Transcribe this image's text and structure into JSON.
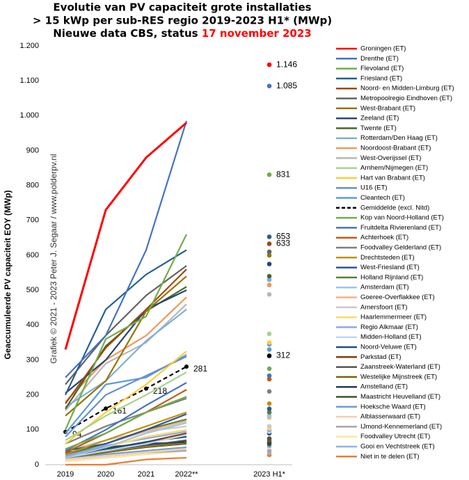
{
  "chart_data": {
    "type": "line",
    "title_lines": [
      "Evolutie van PV capaciteit grote installaties",
      "> 15 kWp per sub-RES regio 2019-2023 H1* (MWp)"
    ],
    "title_line3": "Nieuwe data CBS, status ",
    "title_highlight": "17 november 2023",
    "ylabel": "Geaccumuleerde PV capaciteit EOY (MWp)",
    "annotation": "Grafiek © 2021 - 2023 Peter J. Segaar / www.polderpv.nl",
    "categories": [
      "2019",
      "2020",
      "2021",
      "2022**",
      "2023 H1*"
    ],
    "ylim": [
      0,
      1200
    ],
    "yticks": [
      0,
      100,
      200,
      300,
      400,
      500,
      600,
      700,
      800,
      900,
      {
        "value": 1000,
        "label": "1.000"
      },
      {
        "value": 1100,
        "label": "1.100"
      },
      {
        "value": 1200,
        "label": "1.200"
      }
    ],
    "grid": false,
    "legend": "right",
    "series": [
      {
        "name": "Groningen (ET)",
        "color": "#ff0000",
        "values": [
          330,
          730,
          880,
          980,
          1146
        ],
        "value_labels": [
          null,
          null,
          null,
          null,
          "1.146"
        ]
      },
      {
        "name": "Drenthe (ET)",
        "color": "#4472c4",
        "values": [
          250,
          370,
          615,
          985,
          1085
        ],
        "value_labels": [
          null,
          null,
          null,
          null,
          "1.085"
        ]
      },
      {
        "name": "Flevoland (ET)",
        "color": "#70ad47",
        "values": [
          100,
          360,
          425,
          660,
          831
        ],
        "value_labels": [
          null,
          null,
          null,
          null,
          "831"
        ]
      },
      {
        "name": "Friesland (ET)",
        "color": "#255e91",
        "values": [
          200,
          445,
          545,
          615,
          653
        ],
        "value_labels": [
          null,
          null,
          null,
          null,
          "653"
        ]
      },
      {
        "name": "Noord- en Midden-Limburg (ET)",
        "color": "#9e480e",
        "values": [
          175,
          335,
          445,
          560,
          633
        ],
        "value_labels": [
          null,
          null,
          null,
          null,
          "633"
        ]
      },
      {
        "name": "Metropoolregio Eindhoven (ET)",
        "color": "#636363",
        "values": [
          230,
          370,
          485,
          570,
          610
        ]
      },
      {
        "name": "West-Brabant (ET)",
        "color": "#997300",
        "values": [
          140,
          240,
          440,
          540,
          600
        ]
      },
      {
        "name": "Zeeland (ET)",
        "color": "#264478",
        "values": [
          205,
          300,
          445,
          500,
          575
        ]
      },
      {
        "name": "Twente (ET)",
        "color": "#43682b",
        "values": [
          160,
          340,
          440,
          510,
          540
        ]
      },
      {
        "name": "Rotterdam/Den Haag (ET)",
        "color": "#7cafdd",
        "values": [
          165,
          240,
          355,
          445,
          530
        ]
      },
      {
        "name": "Noordoost-Brabant (ET)",
        "color": "#f1975a",
        "values": [
          180,
          300,
          370,
          480,
          515
        ]
      },
      {
        "name": "West-Overijssel (ET)",
        "color": "#b7b7b7",
        "values": [
          155,
          290,
          350,
          460,
          488
        ]
      },
      {
        "name": "Arnhem/Nijmegen (ET)",
        "color": "#a9d18e",
        "values": [
          70,
          140,
          200,
          265,
          375
        ]
      },
      {
        "name": "Hart van Brabant (ET)",
        "color": "#ffcd33",
        "values": [
          60,
          150,
          230,
          325,
          350
        ]
      },
      {
        "name": "U16 (ET)",
        "color": "#698ed0",
        "values": [
          80,
          200,
          255,
          310,
          345
        ]
      },
      {
        "name": "Cleantech (ET)",
        "color": "#5b9bd5",
        "values": [
          90,
          230,
          250,
          315,
          330
        ]
      },
      {
        "name": "Gemiddelde (excl. Nitd)",
        "color": "#000000",
        "style": "dashed",
        "values": [
          94,
          161,
          218,
          281,
          312
        ],
        "value_labels": [
          "94",
          "161",
          "218",
          "281",
          "312"
        ]
      },
      {
        "name": "Kop van Noord-Holland (ET)",
        "color": "#70ad47",
        "values": [
          45,
          90,
          150,
          195,
          275
        ]
      },
      {
        "name": "Fruitdelta Rivierenland (ET)",
        "color": "#4472c4",
        "values": [
          40,
          100,
          170,
          235,
          255
        ]
      },
      {
        "name": "Achterhoek (ET)",
        "color": "#c55a11",
        "values": [
          35,
          90,
          150,
          215,
          245
        ]
      },
      {
        "name": "Foodvalley Gelderland (ET)",
        "color": "#7f7f7f",
        "values": [
          60,
          110,
          150,
          190,
          210
        ]
      },
      {
        "name": "Drechtsteden (ET)",
        "color": "#bf9000",
        "values": [
          30,
          70,
          110,
          150,
          175
        ]
      },
      {
        "name": "West-Friesland (ET)",
        "color": "#2f5597",
        "values": [
          40,
          60,
          100,
          145,
          160
        ]
      },
      {
        "name": "Holland Rijnland (ET)",
        "color": "#548235",
        "values": [
          30,
          60,
          100,
          130,
          150
        ]
      },
      {
        "name": "Amsterdam (ET)",
        "color": "#9dc3e6",
        "values": [
          20,
          50,
          90,
          120,
          140
        ]
      },
      {
        "name": "Goeree-Overflakkee (ET)",
        "color": "#f4b183",
        "values": [
          30,
          60,
          95,
          125,
          135
        ]
      },
      {
        "name": "Amersfoort (ET)",
        "color": "#c9c9c9",
        "values": [
          40,
          70,
          95,
          110,
          110
        ]
      },
      {
        "name": "Haarlemmermeer (ET)",
        "color": "#ffd966",
        "values": [
          20,
          50,
          80,
          100,
          105
        ]
      },
      {
        "name": "Regio Alkmaar (ET)",
        "color": "#8faadc",
        "values": [
          25,
          55,
          75,
          95,
          100
        ]
      },
      {
        "name": "Midden-Holland (ET)",
        "color": "#bdd7ee",
        "values": [
          20,
          40,
          60,
          85,
          95
        ]
      },
      {
        "name": "Noord-Veluwe (ET)",
        "color": "#1f4e79",
        "values": [
          30,
          45,
          65,
          80,
          90
        ]
      },
      {
        "name": "Parkstad (ET)",
        "color": "#843c0c",
        "values": [
          30,
          45,
          65,
          90,
          95
        ]
      },
      {
        "name": "Zaanstreek-Waterland (ET)",
        "color": "#525252",
        "values": [
          25,
          40,
          55,
          70,
          75
        ]
      },
      {
        "name": "Westelijke Mijnstreek (ET)",
        "color": "#7f6000",
        "values": [
          20,
          35,
          50,
          60,
          70
        ]
      },
      {
        "name": "Amstelland (ET)",
        "color": "#203864",
        "values": [
          35,
          50,
          60,
          65,
          65
        ]
      },
      {
        "name": "Maastricht Heuvelland (ET)",
        "color": "#375623",
        "values": [
          35,
          45,
          55,
          65,
          60
        ]
      },
      {
        "name": "Hoeksche Waard (ET)",
        "color": "#6a9fd4",
        "values": [
          20,
          30,
          40,
          50,
          55
        ]
      },
      {
        "name": "Alblasserwaard (ET)",
        "color": "#f8cbad",
        "values": [
          15,
          25,
          35,
          45,
          50
        ]
      },
      {
        "name": "IJmond-Kennemerland (ET)",
        "color": "#a5a5a5",
        "values": [
          15,
          25,
          35,
          40,
          40
        ]
      },
      {
        "name": "Foodvalley Utrecht (ET)",
        "color": "#ffe699",
        "values": [
          10,
          20,
          30,
          40,
          40
        ]
      },
      {
        "name": "Gooi en Vechtstreek (ET)",
        "color": "#8eb4e3",
        "values": [
          10,
          20,
          30,
          40,
          35
        ]
      },
      {
        "name": "Niet in te delen (ET)",
        "color": "#ed7d31",
        "values": [
          0,
          0,
          15,
          20,
          28
        ]
      }
    ]
  }
}
